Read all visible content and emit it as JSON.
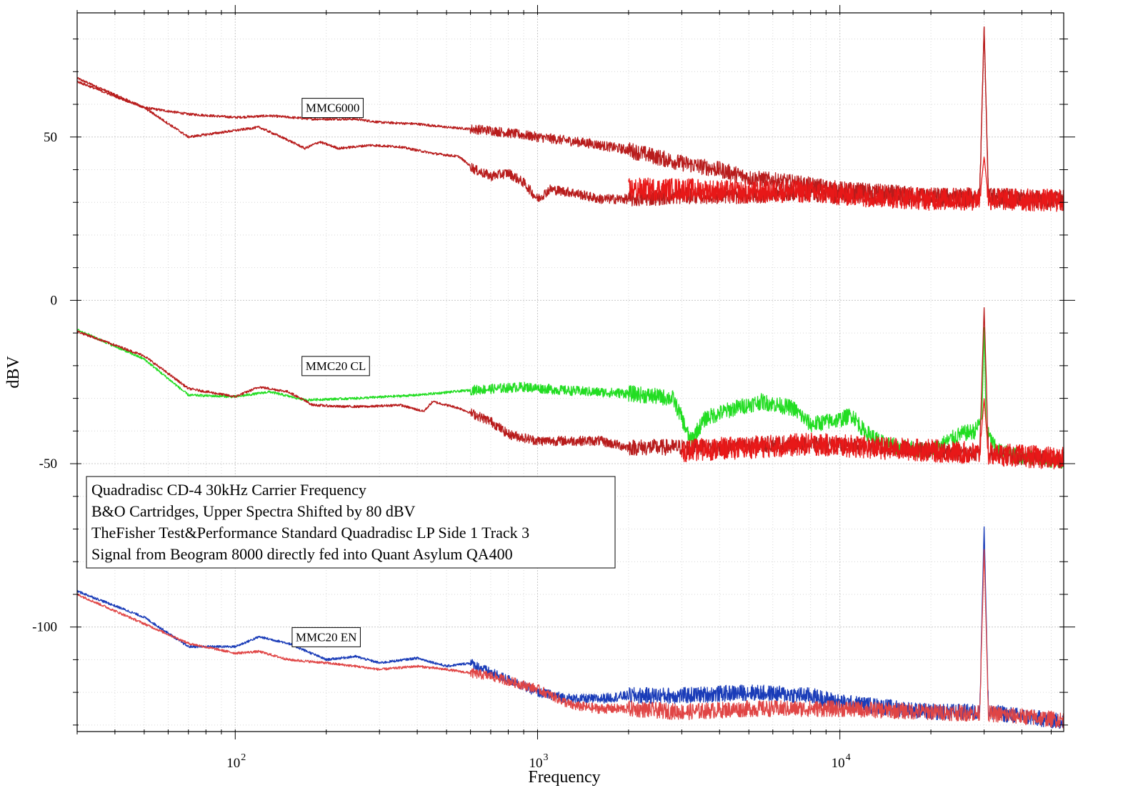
{
  "chart_data": {
    "type": "line",
    "xscale": "log",
    "xlim": [
      30,
      55000
    ],
    "ylim": [
      -132,
      88
    ],
    "xlabel": "Frequency",
    "ylabel": "dBV",
    "yticks": [
      50,
      0,
      -50,
      -100
    ],
    "yticklabels": [
      "50",
      "0",
      "-50",
      "-100"
    ],
    "xticks": [
      100,
      1000,
      10000
    ],
    "xticklabels": [
      "10",
      "10",
      "10"
    ],
    "xtickexps": [
      "2",
      "3",
      "4"
    ],
    "grid": true,
    "annotations": [
      {
        "text": "MMC6000",
        "x": 210,
        "y": 59
      },
      {
        "text": "MMC20 CL",
        "x": 215,
        "y": -20
      },
      {
        "text": "MMC20 EN",
        "x": 200,
        "y": -103
      }
    ],
    "info_box": [
      "Quadradisc CD-4 30kHz Carrier Frequency",
      "B&O Cartridges, Upper Spectra Shifted by 80 dBV",
      "TheFisher Test&Performance Standard Quadradisc LP Side 1 Track 3",
      "Signal from Beogram 8000 directly fed into Quant Asylum QA400"
    ],
    "series": [
      {
        "color": "#b81c1c",
        "noise": 2.5,
        "points": [
          [
            30,
            68
          ],
          [
            50,
            59
          ],
          [
            70,
            57
          ],
          [
            100,
            56
          ],
          [
            130,
            56.5
          ],
          [
            180,
            55.5
          ],
          [
            250,
            55.5
          ],
          [
            300,
            54.5
          ],
          [
            400,
            54
          ],
          [
            500,
            53
          ],
          [
            700,
            52
          ],
          [
            1000,
            50
          ],
          [
            1500,
            48
          ],
          [
            2000,
            46
          ],
          [
            3000,
            42
          ],
          [
            4000,
            40
          ],
          [
            5000,
            37.5
          ],
          [
            7000,
            36
          ],
          [
            10000,
            34
          ],
          [
            20000,
            32
          ],
          [
            29000,
            32
          ],
          [
            30000,
            84
          ],
          [
            31000,
            32
          ],
          [
            55000,
            31
          ]
        ]
      },
      {
        "color": "#b81c1c",
        "noise": 2.5,
        "points": [
          [
            30,
            67
          ],
          [
            50,
            59
          ],
          [
            70,
            50
          ],
          [
            100,
            52
          ],
          [
            120,
            53
          ],
          [
            150,
            49
          ],
          [
            170,
            46.5
          ],
          [
            190,
            48.5
          ],
          [
            220,
            46.5
          ],
          [
            280,
            47.5
          ],
          [
            350,
            47
          ],
          [
            450,
            45
          ],
          [
            550,
            44
          ],
          [
            620,
            40
          ],
          [
            700,
            38
          ],
          [
            800,
            39
          ],
          [
            900,
            36
          ],
          [
            1000,
            31
          ],
          [
            1100,
            34
          ],
          [
            1300,
            33
          ],
          [
            1600,
            31
          ],
          [
            2000,
            31
          ],
          [
            3000,
            32
          ],
          [
            5000,
            32
          ],
          [
            7000,
            33
          ],
          [
            10000,
            32
          ],
          [
            20000,
            31
          ],
          [
            29000,
            31
          ],
          [
            30000,
            84
          ],
          [
            31000,
            31
          ],
          [
            55000,
            30
          ]
        ]
      },
      {
        "color": "#e81818",
        "noise": 3.5,
        "points": [
          [
            2000,
            34
          ],
          [
            3000,
            34
          ],
          [
            5000,
            33
          ],
          [
            7000,
            33.5
          ],
          [
            10000,
            32.5
          ],
          [
            20000,
            31
          ],
          [
            29000,
            31
          ],
          [
            30000,
            44
          ],
          [
            31000,
            31
          ],
          [
            55000,
            30.5
          ]
        ]
      },
      {
        "color": "#22dd22",
        "noise": 2.5,
        "points": [
          [
            30,
            -9
          ],
          [
            50,
            -18
          ],
          [
            70,
            -29
          ],
          [
            100,
            -29.5
          ],
          [
            130,
            -28
          ],
          [
            170,
            -30.5
          ],
          [
            250,
            -30
          ],
          [
            400,
            -29
          ],
          [
            600,
            -27.5
          ],
          [
            900,
            -26.5
          ],
          [
            1200,
            -27.5
          ],
          [
            1500,
            -28
          ],
          [
            2000,
            -28.5
          ],
          [
            2800,
            -30
          ],
          [
            3000,
            -36
          ],
          [
            3200,
            -43
          ],
          [
            3600,
            -36
          ],
          [
            4500,
            -33
          ],
          [
            5500,
            -31
          ],
          [
            7000,
            -33
          ],
          [
            8000,
            -38
          ],
          [
            10000,
            -36.5
          ],
          [
            11000,
            -35
          ],
          [
            12000,
            -40
          ],
          [
            14000,
            -44
          ],
          [
            16000,
            -45
          ],
          [
            20000,
            -46
          ],
          [
            25000,
            -41
          ],
          [
            28000,
            -40
          ],
          [
            29500,
            -36
          ],
          [
            30000,
            -8
          ],
          [
            30500,
            -40
          ],
          [
            33000,
            -46
          ],
          [
            40000,
            -48
          ],
          [
            55000,
            -49
          ]
        ]
      },
      {
        "color": "#b81c1c",
        "noise": 2.5,
        "points": [
          [
            30,
            -9.5
          ],
          [
            50,
            -17
          ],
          [
            70,
            -27
          ],
          [
            100,
            -29.5
          ],
          [
            120,
            -26.5
          ],
          [
            150,
            -28
          ],
          [
            180,
            -32
          ],
          [
            220,
            -32.5
          ],
          [
            280,
            -32.5
          ],
          [
            350,
            -32
          ],
          [
            420,
            -34
          ],
          [
            450,
            -31
          ],
          [
            550,
            -33
          ],
          [
            700,
            -37
          ],
          [
            800,
            -41
          ],
          [
            1000,
            -43
          ],
          [
            1300,
            -43
          ],
          [
            1600,
            -43
          ],
          [
            2000,
            -45
          ],
          [
            2500,
            -45
          ],
          [
            3000,
            -45
          ],
          [
            4000,
            -45
          ],
          [
            6000,
            -44
          ],
          [
            10000,
            -44.5
          ],
          [
            20000,
            -46
          ],
          [
            29000,
            -47
          ],
          [
            30000,
            -2
          ],
          [
            31000,
            -47
          ],
          [
            55000,
            -49
          ]
        ]
      },
      {
        "color": "#e81818",
        "noise": 3.5,
        "points": [
          [
            3000,
            -46
          ],
          [
            5000,
            -45
          ],
          [
            8000,
            -44
          ],
          [
            10000,
            -44.5
          ],
          [
            20000,
            -46
          ],
          [
            29000,
            -47
          ],
          [
            30000,
            -30
          ],
          [
            31000,
            -47
          ],
          [
            55000,
            -48.5
          ]
        ]
      },
      {
        "color": "#1a3cb8",
        "noise": 2.5,
        "points": [
          [
            30,
            -89
          ],
          [
            50,
            -97
          ],
          [
            70,
            -106
          ],
          [
            100,
            -106
          ],
          [
            120,
            -103
          ],
          [
            150,
            -105
          ],
          [
            200,
            -110
          ],
          [
            250,
            -109
          ],
          [
            300,
            -111
          ],
          [
            400,
            -109.5
          ],
          [
            500,
            -112
          ],
          [
            600,
            -111
          ],
          [
            700,
            -114
          ],
          [
            900,
            -118
          ],
          [
            1000,
            -120
          ],
          [
            1300,
            -122
          ],
          [
            1600,
            -122
          ],
          [
            2000,
            -121
          ],
          [
            3000,
            -121
          ],
          [
            5000,
            -120
          ],
          [
            8000,
            -121
          ],
          [
            10000,
            -123
          ],
          [
            20000,
            -126
          ],
          [
            29000,
            -126
          ],
          [
            30000,
            -69
          ],
          [
            31000,
            -126
          ],
          [
            55000,
            -129
          ]
        ]
      },
      {
        "color": "#e04545",
        "noise": 2.5,
        "points": [
          [
            30,
            -90
          ],
          [
            50,
            -99
          ],
          [
            70,
            -105
          ],
          [
            100,
            -108
          ],
          [
            120,
            -107.5
          ],
          [
            150,
            -110
          ],
          [
            200,
            -111
          ],
          [
            250,
            -112
          ],
          [
            300,
            -113
          ],
          [
            400,
            -112
          ],
          [
            500,
            -113
          ],
          [
            700,
            -115
          ],
          [
            1000,
            -119
          ],
          [
            1300,
            -124
          ],
          [
            1600,
            -125
          ],
          [
            2000,
            -125
          ],
          [
            3000,
            -126
          ],
          [
            5000,
            -125
          ],
          [
            10000,
            -125
          ],
          [
            20000,
            -126
          ],
          [
            29000,
            -126.5
          ],
          [
            30000,
            -76
          ],
          [
            31000,
            -126.5
          ],
          [
            55000,
            -128.5
          ]
        ]
      }
    ]
  }
}
